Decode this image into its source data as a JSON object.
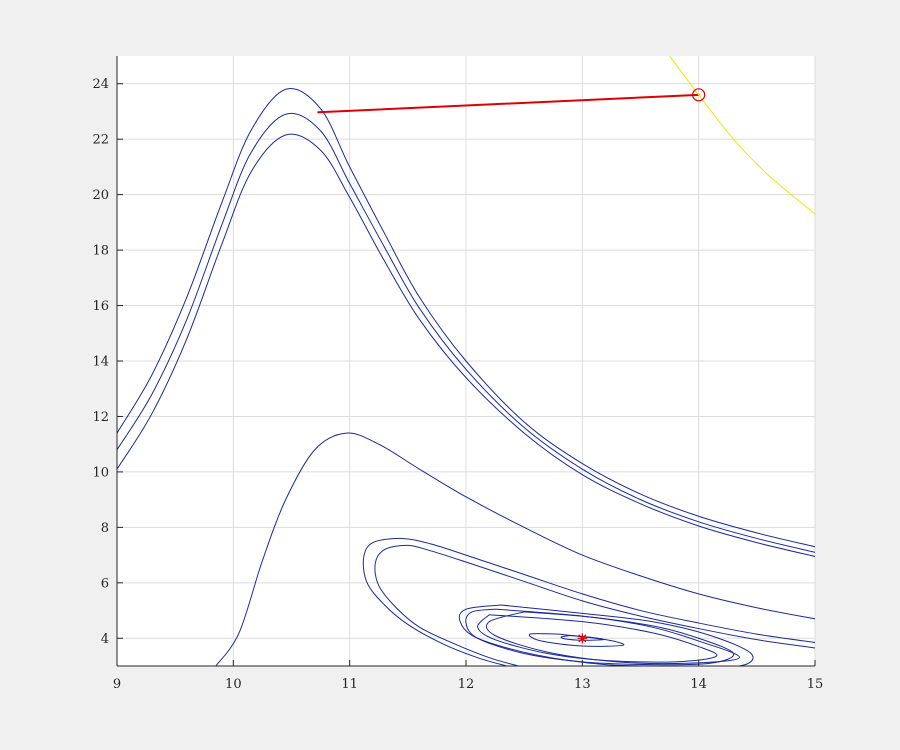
{
  "chart_data": {
    "type": "line",
    "title": "",
    "xlabel": "",
    "ylabel": "",
    "xlim": [
      9,
      15
    ],
    "ylim": [
      3,
      25
    ],
    "xticks": [
      "9",
      "10",
      "11",
      "12",
      "13",
      "14",
      "15"
    ],
    "yticks": [
      "4",
      "6",
      "8",
      "10",
      "12",
      "14",
      "16",
      "18",
      "20",
      "22",
      "24"
    ],
    "grid": true,
    "colors": {
      "trajectory": "#1a2a9a",
      "segment": "#e00000",
      "boundary": "#f2e600",
      "equilibrium": "#e00000"
    },
    "series": [
      {
        "kind": "trajectory",
        "points": [
          [
            9,
            11.4
          ],
          [
            9.3,
            13.5
          ],
          [
            9.6,
            16.3
          ],
          [
            9.9,
            19.7
          ],
          [
            10.15,
            22.3
          ],
          [
            10.45,
            23.8
          ],
          [
            10.75,
            23.1
          ],
          [
            11.0,
            21.0
          ],
          [
            11.3,
            18.6
          ],
          [
            11.6,
            16.3
          ],
          [
            12.0,
            14.0
          ],
          [
            12.5,
            11.8
          ],
          [
            13.0,
            10.3
          ],
          [
            13.5,
            9.2
          ],
          [
            14.0,
            8.4
          ],
          [
            14.5,
            7.8
          ],
          [
            15,
            7.3
          ]
        ]
      },
      {
        "kind": "trajectory",
        "points": [
          [
            9,
            10.8
          ],
          [
            9.3,
            12.8
          ],
          [
            9.6,
            15.5
          ],
          [
            9.9,
            18.9
          ],
          [
            10.15,
            21.5
          ],
          [
            10.45,
            22.9
          ],
          [
            10.75,
            22.3
          ],
          [
            11.0,
            20.4
          ],
          [
            11.3,
            18.1
          ],
          [
            11.6,
            15.9
          ],
          [
            12.0,
            13.7
          ],
          [
            12.5,
            11.6
          ],
          [
            13.0,
            10.1
          ],
          [
            13.5,
            9.0
          ],
          [
            14.0,
            8.2
          ],
          [
            14.5,
            7.6
          ],
          [
            15,
            7.1
          ]
        ]
      },
      {
        "kind": "trajectory",
        "points": [
          [
            9,
            10.1
          ],
          [
            9.3,
            12.1
          ],
          [
            9.6,
            14.8
          ],
          [
            9.9,
            18.2
          ],
          [
            10.15,
            20.8
          ],
          [
            10.45,
            22.15
          ],
          [
            10.75,
            21.6
          ],
          [
            11.0,
            19.9
          ],
          [
            11.3,
            17.6
          ],
          [
            11.6,
            15.5
          ],
          [
            12.0,
            13.4
          ],
          [
            12.5,
            11.4
          ],
          [
            13.0,
            9.9
          ],
          [
            13.5,
            8.85
          ],
          [
            14.0,
            8.05
          ],
          [
            14.5,
            7.45
          ],
          [
            15,
            6.95
          ]
        ]
      },
      {
        "kind": "trajectory",
        "points": [
          [
            9.85,
            3.0
          ],
          [
            10.05,
            4.2
          ],
          [
            10.25,
            6.8
          ],
          [
            10.45,
            9.0
          ],
          [
            10.7,
            10.8
          ],
          [
            10.97,
            11.4
          ],
          [
            11.25,
            11.0
          ],
          [
            11.6,
            10.1
          ],
          [
            12.0,
            9.1
          ],
          [
            12.5,
            8.0
          ],
          [
            13.0,
            7.0
          ],
          [
            13.5,
            6.25
          ],
          [
            14.0,
            5.6
          ],
          [
            14.5,
            5.1
          ],
          [
            15,
            4.7
          ]
        ]
      },
      {
        "kind": "trajectory",
        "points": [
          [
            15,
            3.85
          ],
          [
            14.5,
            4.15
          ],
          [
            14.0,
            4.55
          ],
          [
            13.5,
            5.0
          ],
          [
            13.0,
            5.6
          ],
          [
            12.5,
            6.3
          ],
          [
            12.0,
            7.0
          ],
          [
            11.7,
            7.4
          ],
          [
            11.45,
            7.6
          ],
          [
            11.2,
            7.45
          ],
          [
            11.12,
            6.9
          ],
          [
            11.15,
            6.0
          ],
          [
            11.3,
            5.2
          ],
          [
            11.5,
            4.5
          ],
          [
            11.8,
            3.8
          ],
          [
            12.1,
            3.3
          ],
          [
            12.35,
            3.0
          ]
        ]
      },
      {
        "kind": "trajectory",
        "points": [
          [
            15,
            3.65
          ],
          [
            14.5,
            3.95
          ],
          [
            14.0,
            4.35
          ],
          [
            13.5,
            4.8
          ],
          [
            13.0,
            5.35
          ],
          [
            12.5,
            6.05
          ],
          [
            12.0,
            6.75
          ],
          [
            11.7,
            7.15
          ],
          [
            11.5,
            7.35
          ],
          [
            11.3,
            7.2
          ],
          [
            11.22,
            6.7
          ],
          [
            11.25,
            5.9
          ],
          [
            11.4,
            5.1
          ],
          [
            11.6,
            4.4
          ],
          [
            11.9,
            3.8
          ],
          [
            12.2,
            3.3
          ],
          [
            12.45,
            3.0
          ]
        ]
      },
      {
        "kind": "trajectory",
        "points": [
          [
            12.3,
            5.2
          ],
          [
            13.0,
            4.9
          ],
          [
            13.6,
            4.6
          ],
          [
            14.1,
            4.1
          ],
          [
            14.45,
            3.45
          ],
          [
            14.35,
            3.0
          ],
          [
            13.8,
            3.0
          ],
          [
            13.2,
            3.05
          ],
          [
            12.6,
            3.4
          ],
          [
            12.1,
            4.0
          ],
          [
            11.95,
            4.6
          ],
          [
            12.0,
            5.05
          ],
          [
            12.3,
            5.2
          ]
        ]
      },
      {
        "kind": "trajectory",
        "points": [
          [
            12.25,
            5.05
          ],
          [
            13.0,
            4.8
          ],
          [
            13.6,
            4.45
          ],
          [
            14.0,
            4.0
          ],
          [
            14.3,
            3.45
          ],
          [
            14.1,
            3.1
          ],
          [
            13.6,
            3.05
          ],
          [
            13.0,
            3.15
          ],
          [
            12.5,
            3.45
          ],
          [
            12.1,
            4.0
          ],
          [
            12.0,
            4.55
          ],
          [
            12.05,
            4.95
          ],
          [
            12.25,
            5.05
          ]
        ]
      },
      {
        "kind": "trajectory",
        "points": [
          [
            12.2,
            4.85
          ],
          [
            13.0,
            4.6
          ],
          [
            13.6,
            4.2
          ],
          [
            14.0,
            3.7
          ],
          [
            14.15,
            3.35
          ],
          [
            13.8,
            3.15
          ],
          [
            13.2,
            3.2
          ],
          [
            12.7,
            3.45
          ],
          [
            12.25,
            3.95
          ],
          [
            12.1,
            4.4
          ],
          [
            12.2,
            4.85
          ]
        ]
      },
      {
        "kind": "trajectory",
        "points": [
          [
            12.5,
            4.95
          ],
          [
            13.1,
            4.75
          ],
          [
            13.6,
            4.4
          ],
          [
            14.0,
            3.9
          ],
          [
            14.35,
            3.3
          ],
          [
            13.9,
            3.1
          ],
          [
            13.3,
            3.15
          ],
          [
            12.7,
            3.5
          ],
          [
            12.25,
            4.1
          ],
          [
            12.2,
            4.6
          ],
          [
            12.5,
            4.95
          ]
        ]
      },
      {
        "kind": "trajectory",
        "points": [
          [
            12.8,
            4.15
          ],
          [
            13.2,
            3.95
          ],
          [
            13.35,
            3.75
          ],
          [
            13.0,
            3.72
          ],
          [
            12.65,
            3.9
          ],
          [
            12.55,
            4.15
          ],
          [
            12.8,
            4.15
          ]
        ]
      },
      {
        "kind": "trajectory",
        "points": [
          [
            12.9,
            4.1
          ],
          [
            13.1,
            4.02
          ],
          [
            13.18,
            3.95
          ],
          [
            13.0,
            3.93
          ],
          [
            12.85,
            3.98
          ],
          [
            12.82,
            4.05
          ],
          [
            12.9,
            4.1
          ]
        ]
      },
      {
        "kind": "segment",
        "points": [
          [
            10.73,
            22.97
          ],
          [
            14.0,
            23.6
          ]
        ]
      },
      {
        "kind": "boundary",
        "points": [
          [
            13.75,
            25.0
          ],
          [
            14.0,
            23.6
          ],
          [
            14.3,
            22.0
          ],
          [
            14.6,
            20.7
          ],
          [
            15.0,
            19.3
          ]
        ]
      }
    ],
    "markers": [
      {
        "kind": "circle",
        "x": 14.0,
        "y": 23.6
      },
      {
        "kind": "star",
        "x": 13.0,
        "y": 4.0
      }
    ]
  }
}
